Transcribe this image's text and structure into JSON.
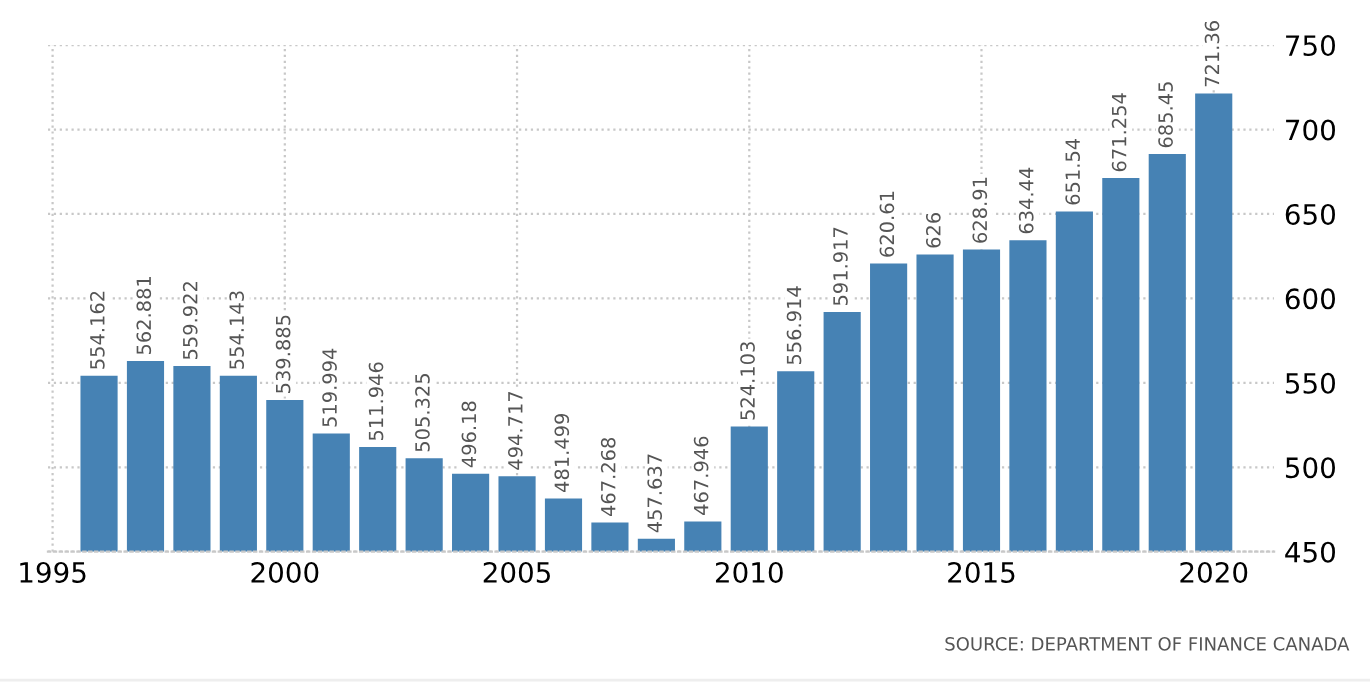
{
  "chart_data": {
    "type": "bar",
    "x": [
      1996,
      1997,
      1998,
      1999,
      2000,
      2001,
      2002,
      2003,
      2004,
      2005,
      2006,
      2007,
      2008,
      2009,
      2010,
      2011,
      2012,
      2013,
      2014,
      2015,
      2016,
      2017,
      2018,
      2019,
      2020
    ],
    "values": [
      554.162,
      562.881,
      559.922,
      554.143,
      539.885,
      519.994,
      511.946,
      505.325,
      496.18,
      494.717,
      481.499,
      467.268,
      457.637,
      467.946,
      524.103,
      556.914,
      591.917,
      620.61,
      626,
      628.91,
      634.44,
      651.54,
      671.254,
      685.45,
      721.36
    ],
    "color": "#4682b4",
    "data_labels": true,
    "xlim": [
      1994.9,
      2021.3
    ],
    "xticks": [
      1995,
      2000,
      2005,
      2010,
      2015,
      2020
    ],
    "ylim": [
      450,
      750
    ],
    "yticks": [
      450,
      500,
      550,
      600,
      650,
      700,
      750
    ],
    "grid": true,
    "annotations": [
      "SOURCE: DEPARTMENT OF FINANCE CANADA"
    ]
  }
}
